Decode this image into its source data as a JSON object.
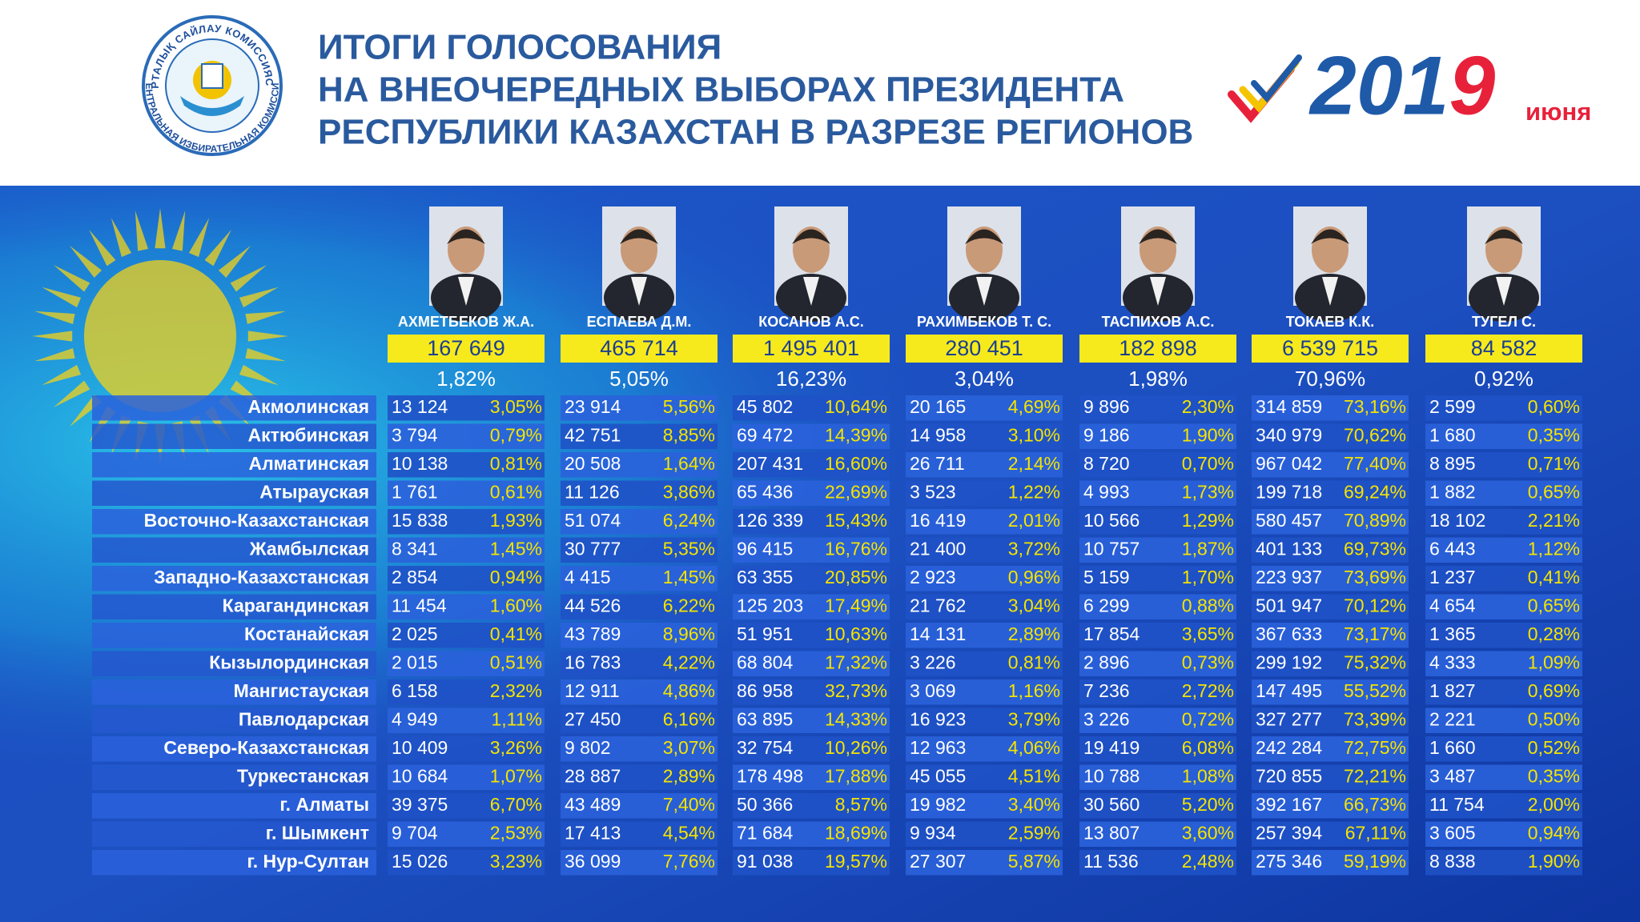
{
  "logo": {
    "text_top": "ОРТАЛЫҚ САЙЛАУ КОМИССИЯСЫ",
    "text_bottom": "ЦЕНТРАЛЬНАЯ ИЗБИРАТЕЛЬНАЯ КОМИССИЯ"
  },
  "header": {
    "title": [
      "ИТОГИ ГОЛОСОВАНИЯ",
      "НА ВНЕОЧЕРЕДНЫХ ВЫБОРАХ ПРЕЗИДЕНТА",
      "РЕСПУБЛИКИ КАЗАХСТАН В РАЗРЕЗЕ РЕГИОНОВ"
    ],
    "year": "2019",
    "month": "июня"
  },
  "candidates": [
    {
      "name": "АХМЕТБЕКОВ Ж.А.",
      "votes": "167 649",
      "percent": "1,82%"
    },
    {
      "name": "ЕСПАЕВА Д.М.",
      "votes": "465 714",
      "percent": "5,05%"
    },
    {
      "name": "КОСАНОВ А.С.",
      "votes": "1 495 401",
      "percent": "16,23%"
    },
    {
      "name": "РАХИМБЕКОВ Т. С.",
      "votes": "280 451",
      "percent": "3,04%"
    },
    {
      "name": "ТАСПИХОВ А.С.",
      "votes": "182 898",
      "percent": "1,98%"
    },
    {
      "name": "ТОКАЕВ К.К.",
      "votes": "6 539 715",
      "percent": "70,96%"
    },
    {
      "name": "ТУГЕЛ С.",
      "votes": "84 582",
      "percent": "0,92%"
    }
  ],
  "rows": [
    {
      "region": "Акмолинская",
      "cells": [
        [
          "13 124",
          "3,05%"
        ],
        [
          "23 914",
          "5,56%"
        ],
        [
          "45 802",
          "10,64%"
        ],
        [
          "20 165",
          "4,69%"
        ],
        [
          "9 896",
          "2,30%"
        ],
        [
          "314 859",
          "73,16%"
        ],
        [
          "2 599",
          "0,60%"
        ]
      ]
    },
    {
      "region": "Актюбинская",
      "cells": [
        [
          "3 794",
          "0,79%"
        ],
        [
          "42 751",
          "8,85%"
        ],
        [
          "69 472",
          "14,39%"
        ],
        [
          "14 958",
          "3,10%"
        ],
        [
          "9 186",
          "1,90%"
        ],
        [
          "340 979",
          "70,62%"
        ],
        [
          "1 680",
          "0,35%"
        ]
      ]
    },
    {
      "region": "Алматинская",
      "cells": [
        [
          "10 138",
          "0,81%"
        ],
        [
          "20 508",
          "1,64%"
        ],
        [
          "207 431",
          "16,60%"
        ],
        [
          "26 711",
          "2,14%"
        ],
        [
          "8 720",
          "0,70%"
        ],
        [
          "967 042",
          "77,40%"
        ],
        [
          "8 895",
          "0,71%"
        ]
      ]
    },
    {
      "region": "Атырауская",
      "cells": [
        [
          "1 761",
          "0,61%"
        ],
        [
          "11 126",
          "3,86%"
        ],
        [
          "65 436",
          "22,69%"
        ],
        [
          "3 523",
          "1,22%"
        ],
        [
          "4 993",
          "1,73%"
        ],
        [
          "199 718",
          "69,24%"
        ],
        [
          "1 882",
          "0,65%"
        ]
      ]
    },
    {
      "region": "Восточно-Казахстанская",
      "cells": [
        [
          "15 838",
          "1,93%"
        ],
        [
          "51 074",
          "6,24%"
        ],
        [
          "126 339",
          "15,43%"
        ],
        [
          "16 419",
          "2,01%"
        ],
        [
          "10 566",
          "1,29%"
        ],
        [
          "580 457",
          "70,89%"
        ],
        [
          "18 102",
          "2,21%"
        ]
      ]
    },
    {
      "region": "Жамбылская",
      "cells": [
        [
          "8 341",
          "1,45%"
        ],
        [
          "30 777",
          "5,35%"
        ],
        [
          "96 415",
          "16,76%"
        ],
        [
          "21 400",
          "3,72%"
        ],
        [
          "10 757",
          "1,87%"
        ],
        [
          "401 133",
          "69,73%"
        ],
        [
          "6 443",
          "1,12%"
        ]
      ]
    },
    {
      "region": "Западно-Казахстанская",
      "cells": [
        [
          "2 854",
          "0,94%"
        ],
        [
          "4 415",
          "1,45%"
        ],
        [
          "63 355",
          "20,85%"
        ],
        [
          "2 923",
          "0,96%"
        ],
        [
          "5 159",
          "1,70%"
        ],
        [
          "223 937",
          "73,69%"
        ],
        [
          "1 237",
          "0,41%"
        ]
      ]
    },
    {
      "region": "Карагандинская",
      "cells": [
        [
          "11 454",
          "1,60%"
        ],
        [
          "44 526",
          "6,22%"
        ],
        [
          "125 203",
          "17,49%"
        ],
        [
          "21 762",
          "3,04%"
        ],
        [
          "6 299",
          "0,88%"
        ],
        [
          "501 947",
          "70,12%"
        ],
        [
          "4 654",
          "0,65%"
        ]
      ]
    },
    {
      "region": "Костанайская",
      "cells": [
        [
          "2 025",
          "0,41%"
        ],
        [
          "43 789",
          "8,96%"
        ],
        [
          "51 951",
          "10,63%"
        ],
        [
          "14 131",
          "2,89%"
        ],
        [
          "17 854",
          "3,65%"
        ],
        [
          "367 633",
          "73,17%"
        ],
        [
          "1 365",
          "0,28%"
        ]
      ]
    },
    {
      "region": "Кызылординская",
      "cells": [
        [
          "2 015",
          "0,51%"
        ],
        [
          "16 783",
          "4,22%"
        ],
        [
          "68 804",
          "17,32%"
        ],
        [
          "3 226",
          "0,81%"
        ],
        [
          "2 896",
          "0,73%"
        ],
        [
          "299 192",
          "75,32%"
        ],
        [
          "4 333",
          "1,09%"
        ]
      ]
    },
    {
      "region": "Мангистауская",
      "cells": [
        [
          "6 158",
          "2,32%"
        ],
        [
          "12 911",
          "4,86%"
        ],
        [
          "86 958",
          "32,73%"
        ],
        [
          "3 069",
          "1,16%"
        ],
        [
          "7 236",
          "2,72%"
        ],
        [
          "147 495",
          "55,52%"
        ],
        [
          "1 827",
          "0,69%"
        ]
      ]
    },
    {
      "region": "Павлодарская",
      "cells": [
        [
          "4 949",
          "1,11%"
        ],
        [
          "27 450",
          "6,16%"
        ],
        [
          "63 895",
          "14,33%"
        ],
        [
          "16 923",
          "3,79%"
        ],
        [
          "3 226",
          "0,72%"
        ],
        [
          "327 277",
          "73,39%"
        ],
        [
          "2 221",
          "0,50%"
        ]
      ]
    },
    {
      "region": "Северо-Казахстанская",
      "cells": [
        [
          "10 409",
          "3,26%"
        ],
        [
          "9 802",
          "3,07%"
        ],
        [
          "32 754",
          "10,26%"
        ],
        [
          "12 963",
          "4,06%"
        ],
        [
          "19 419",
          "6,08%"
        ],
        [
          "242 284",
          "72,75%"
        ],
        [
          "1 660",
          "0,52%"
        ]
      ]
    },
    {
      "region": "Туркестанская",
      "cells": [
        [
          "10 684",
          "1,07%"
        ],
        [
          "28 887",
          "2,89%"
        ],
        [
          "178 498",
          "17,88%"
        ],
        [
          "45 055",
          "4,51%"
        ],
        [
          "10 788",
          "1,08%"
        ],
        [
          "720 855",
          "72,21%"
        ],
        [
          "3 487",
          "0,35%"
        ]
      ]
    },
    {
      "region": "г. Алматы",
      "cells": [
        [
          "39 375",
          "6,70%"
        ],
        [
          "43 489",
          "7,40%"
        ],
        [
          "50 366",
          "8,57%"
        ],
        [
          "19 982",
          "3,40%"
        ],
        [
          "30 560",
          "5,20%"
        ],
        [
          "392 167",
          "66,73%"
        ],
        [
          "11 754",
          "2,00%"
        ]
      ]
    },
    {
      "region": "г. Шымкент",
      "cells": [
        [
          "9 704",
          "2,53%"
        ],
        [
          "17 413",
          "4,54%"
        ],
        [
          "71 684",
          "18,69%"
        ],
        [
          "9 934",
          "2,59%"
        ],
        [
          "13 807",
          "3,60%"
        ],
        [
          "257 394",
          "67,11%"
        ],
        [
          "3 605",
          "0,94%"
        ]
      ]
    },
    {
      "region": "г. Нур-Султан",
      "cells": [
        [
          "15 026",
          "3,23%"
        ],
        [
          "36 099",
          "7,76%"
        ],
        [
          "91 038",
          "19,57%"
        ],
        [
          "27 307",
          "5,87%"
        ],
        [
          "11 536",
          "2,48%"
        ],
        [
          "275 346",
          "59,19%"
        ],
        [
          "8 838",
          "1,90%"
        ]
      ]
    }
  ]
}
